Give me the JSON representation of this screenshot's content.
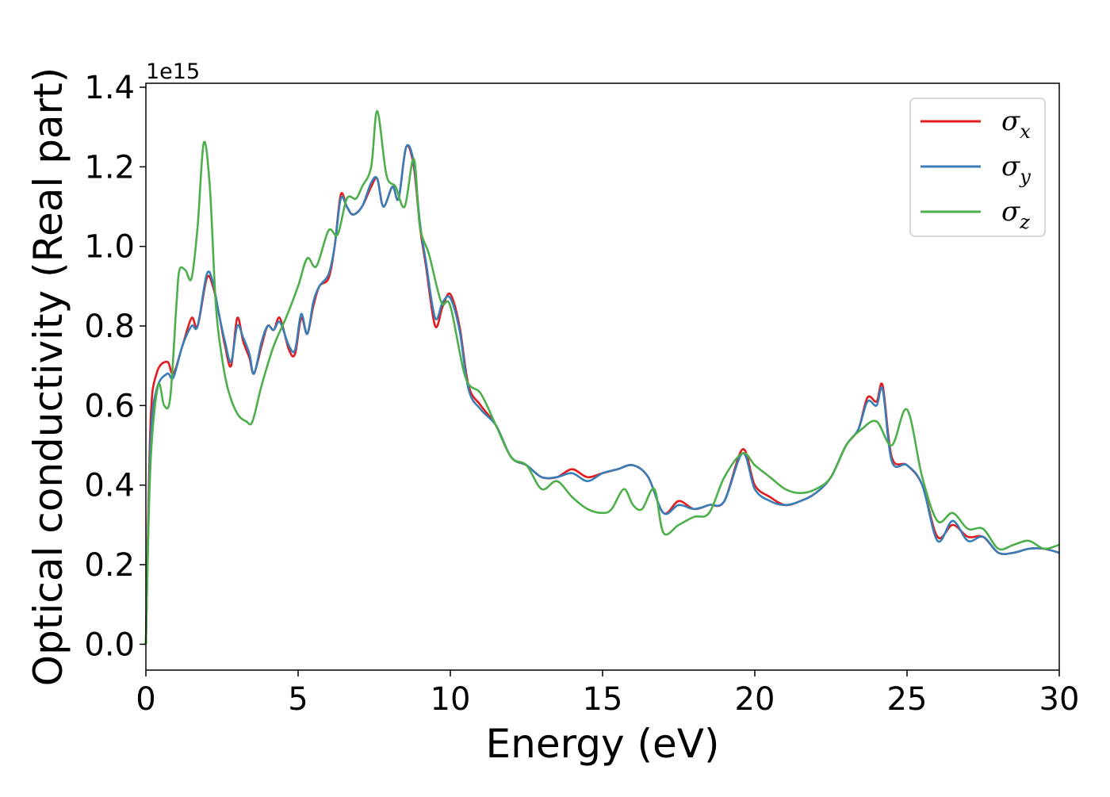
{
  "chart_data": {
    "type": "line",
    "xlabel": "Energy (eV)",
    "ylabel": "Optical conductivity (Real part)",
    "y_offset_text": "1e15",
    "xlim": [
      0,
      30
    ],
    "ylim": [
      -0.065,
      1.41
    ],
    "x_ticks": [
      0,
      5,
      10,
      15,
      20,
      25,
      30
    ],
    "y_ticks": [
      0.0,
      0.2,
      0.4,
      0.6,
      0.8,
      1.0,
      1.2,
      1.4
    ],
    "x_tick_labels": [
      "0",
      "5",
      "10",
      "15",
      "20",
      "25",
      "30"
    ],
    "y_tick_labels": [
      "0.0",
      "0.2",
      "0.4",
      "0.6",
      "0.8",
      "1.0",
      "1.2",
      "1.4"
    ],
    "grid": false,
    "legend_position": "top-right",
    "series": [
      {
        "name": "σx",
        "legend_symbol": "σ",
        "legend_subscript": "x",
        "color": "#e41a1c",
        "x": [
          0,
          0.15,
          0.35,
          0.7,
          0.9,
          1.2,
          1.5,
          1.7,
          2.0,
          2.2,
          2.4,
          2.6,
          2.8,
          3.0,
          3.2,
          3.4,
          3.55,
          3.8,
          4.0,
          4.2,
          4.4,
          4.7,
          4.9,
          5.1,
          5.3,
          5.5,
          5.7,
          6.0,
          6.2,
          6.4,
          6.6,
          6.8,
          7.1,
          7.4,
          7.6,
          7.8,
          8.1,
          8.3,
          8.55,
          8.8,
          9.0,
          9.2,
          9.5,
          9.75,
          10.0,
          10.3,
          10.6,
          11.0,
          11.5,
          12.0,
          12.5,
          13.0,
          13.5,
          14.0,
          14.5,
          15.0,
          15.5,
          16.0,
          16.5,
          17.0,
          17.5,
          18.0,
          18.5,
          19.0,
          19.6,
          20.0,
          20.5,
          21.0,
          21.5,
          22.0,
          22.5,
          23.0,
          23.4,
          23.7,
          24.0,
          24.2,
          24.5,
          25.0,
          25.5,
          26.0,
          26.5,
          27.0,
          27.5,
          28.0,
          28.5,
          29.0,
          29.5,
          30.0
        ],
        "values": [
          0.0,
          0.55,
          0.68,
          0.71,
          0.68,
          0.75,
          0.82,
          0.8,
          0.92,
          0.9,
          0.83,
          0.75,
          0.7,
          0.82,
          0.76,
          0.72,
          0.68,
          0.75,
          0.8,
          0.79,
          0.82,
          0.74,
          0.73,
          0.82,
          0.78,
          0.85,
          0.9,
          0.92,
          1.0,
          1.13,
          1.1,
          1.08,
          1.1,
          1.15,
          1.17,
          1.1,
          1.15,
          1.12,
          1.25,
          1.2,
          1.05,
          0.95,
          0.8,
          0.85,
          0.88,
          0.8,
          0.65,
          0.6,
          0.55,
          0.47,
          0.45,
          0.42,
          0.42,
          0.44,
          0.42,
          0.43,
          0.44,
          0.45,
          0.42,
          0.33,
          0.36,
          0.34,
          0.35,
          0.36,
          0.49,
          0.4,
          0.37,
          0.35,
          0.36,
          0.38,
          0.42,
          0.5,
          0.54,
          0.62,
          0.61,
          0.65,
          0.47,
          0.45,
          0.4,
          0.27,
          0.3,
          0.27,
          0.27,
          0.23,
          0.23,
          0.24,
          0.24,
          0.23
        ]
      },
      {
        "name": "σy",
        "legend_symbol": "σ",
        "legend_subscript": "y",
        "color": "#377eb8",
        "x": [
          0,
          0.15,
          0.35,
          0.7,
          0.9,
          1.2,
          1.5,
          1.7,
          2.0,
          2.2,
          2.4,
          2.6,
          2.8,
          3.0,
          3.2,
          3.4,
          3.55,
          3.8,
          4.0,
          4.2,
          4.4,
          4.7,
          4.9,
          5.1,
          5.3,
          5.5,
          5.7,
          6.0,
          6.2,
          6.4,
          6.6,
          6.8,
          7.1,
          7.4,
          7.6,
          7.8,
          8.1,
          8.3,
          8.55,
          8.8,
          9.0,
          9.2,
          9.5,
          9.75,
          10.0,
          10.3,
          10.6,
          11.0,
          11.5,
          12.0,
          12.5,
          13.0,
          13.5,
          14.0,
          14.5,
          15.0,
          15.5,
          16.0,
          16.5,
          17.0,
          17.5,
          18.0,
          18.5,
          19.0,
          19.6,
          20.0,
          20.5,
          21.0,
          21.5,
          22.0,
          22.5,
          23.0,
          23.4,
          23.7,
          24.0,
          24.2,
          24.5,
          25.0,
          25.5,
          26.0,
          26.5,
          27.0,
          27.5,
          28.0,
          28.5,
          29.0,
          29.5,
          30.0
        ],
        "values": [
          0.0,
          0.5,
          0.64,
          0.68,
          0.67,
          0.75,
          0.8,
          0.8,
          0.93,
          0.91,
          0.83,
          0.76,
          0.71,
          0.8,
          0.77,
          0.73,
          0.68,
          0.76,
          0.8,
          0.79,
          0.81,
          0.75,
          0.74,
          0.83,
          0.78,
          0.86,
          0.9,
          0.93,
          1.0,
          1.12,
          1.1,
          1.08,
          1.1,
          1.16,
          1.17,
          1.1,
          1.15,
          1.12,
          1.25,
          1.21,
          1.06,
          0.96,
          0.82,
          0.86,
          0.87,
          0.79,
          0.64,
          0.59,
          0.55,
          0.47,
          0.45,
          0.42,
          0.42,
          0.43,
          0.41,
          0.43,
          0.44,
          0.45,
          0.42,
          0.33,
          0.35,
          0.34,
          0.35,
          0.36,
          0.48,
          0.39,
          0.36,
          0.35,
          0.36,
          0.38,
          0.42,
          0.5,
          0.54,
          0.61,
          0.6,
          0.64,
          0.46,
          0.45,
          0.4,
          0.26,
          0.31,
          0.26,
          0.27,
          0.23,
          0.23,
          0.24,
          0.24,
          0.23
        ]
      },
      {
        "name": "σz",
        "legend_symbol": "σ",
        "legend_subscript": "z",
        "color": "#4daf4a",
        "x": [
          0,
          0.15,
          0.4,
          0.6,
          0.8,
          1.0,
          1.1,
          1.3,
          1.5,
          1.7,
          1.9,
          2.1,
          2.3,
          2.5,
          2.7,
          3.0,
          3.3,
          3.5,
          3.8,
          4.2,
          4.6,
          5.0,
          5.3,
          5.6,
          6.0,
          6.3,
          6.6,
          6.9,
          7.1,
          7.4,
          7.6,
          7.9,
          8.2,
          8.5,
          8.8,
          9.0,
          9.3,
          9.7,
          10.0,
          10.5,
          11.0,
          11.5,
          12.0,
          12.5,
          13.0,
          13.5,
          14.0,
          14.5,
          15.0,
          15.3,
          15.7,
          16.0,
          16.3,
          16.7,
          17.0,
          17.5,
          18.0,
          18.5,
          19.0,
          19.6,
          20.0,
          20.5,
          21.0,
          21.5,
          22.0,
          22.5,
          23.0,
          23.5,
          24.0,
          24.5,
          25.0,
          25.5,
          26.0,
          26.5,
          27.0,
          27.5,
          28.0,
          28.5,
          29.0,
          29.5,
          30.0
        ],
        "values": [
          0.0,
          0.45,
          0.65,
          0.6,
          0.62,
          0.85,
          0.94,
          0.94,
          0.92,
          1.05,
          1.26,
          1.15,
          0.85,
          0.72,
          0.64,
          0.58,
          0.56,
          0.56,
          0.65,
          0.75,
          0.82,
          0.9,
          0.97,
          0.95,
          1.04,
          1.03,
          1.12,
          1.12,
          1.15,
          1.2,
          1.34,
          1.18,
          1.15,
          1.1,
          1.22,
          1.05,
          0.98,
          0.86,
          0.85,
          0.67,
          0.63,
          0.55,
          0.47,
          0.45,
          0.39,
          0.41,
          0.37,
          0.34,
          0.33,
          0.34,
          0.39,
          0.35,
          0.34,
          0.39,
          0.28,
          0.3,
          0.32,
          0.33,
          0.42,
          0.48,
          0.45,
          0.42,
          0.39,
          0.38,
          0.39,
          0.42,
          0.5,
          0.54,
          0.56,
          0.5,
          0.59,
          0.42,
          0.31,
          0.33,
          0.29,
          0.29,
          0.24,
          0.25,
          0.26,
          0.24,
          0.25
        ]
      }
    ]
  }
}
